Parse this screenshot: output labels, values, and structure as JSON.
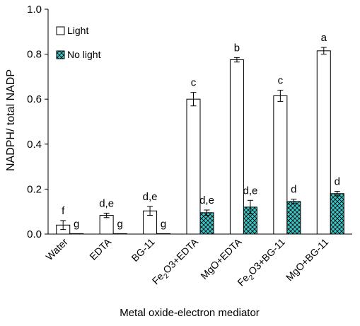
{
  "chart_data": {
    "type": "bar",
    "xlabel": "Metal oxide-electron mediator",
    "ylabel": "NADPH/ total NADP",
    "ylim": [
      0,
      1.0
    ],
    "yticks": [
      "0.0",
      "0.2",
      "0.4",
      "0.6",
      "0.8",
      "1.0"
    ],
    "grid": false,
    "legend_position": "top-left",
    "categories": [
      {
        "pre": "Water",
        "sub": "",
        "post": ""
      },
      {
        "pre": "EDTA",
        "sub": "",
        "post": ""
      },
      {
        "pre": "BG-11",
        "sub": "",
        "post": ""
      },
      {
        "pre": "Fe",
        "sub": "2",
        "post": "O3+EDTA"
      },
      {
        "pre": "MgO+EDTA",
        "sub": "",
        "post": ""
      },
      {
        "pre": "Fe",
        "sub": "2",
        "post": "O3+BG-11"
      },
      {
        "pre": "MgO+BG-11",
        "sub": "",
        "post": ""
      }
    ],
    "series": [
      {
        "name": "Light",
        "fill": "#ffffff",
        "pattern": "none",
        "values": [
          0.04,
          0.083,
          0.103,
          0.6,
          0.775,
          0.615,
          0.815
        ],
        "errors": [
          0.02,
          0.01,
          0.02,
          0.03,
          0.01,
          0.025,
          0.015
        ],
        "letters": [
          "f",
          "d,e",
          "d,e",
          "c",
          "b",
          "c",
          "a"
        ]
      },
      {
        "name": "No light",
        "fill": "#3cc8c8",
        "pattern": "crosshatch",
        "values": [
          0.002,
          0.002,
          0.002,
          0.095,
          0.12,
          0.145,
          0.18
        ],
        "errors": [
          0,
          0,
          0,
          0.012,
          0.03,
          0.01,
          0.01
        ],
        "letters": [
          "g",
          "g",
          "g",
          "d,e",
          "d,e",
          "d",
          "d"
        ]
      }
    ],
    "colors": {
      "axis": "#000000",
      "no_light_fill": "#3cc8c8",
      "hatch": "#000000"
    }
  }
}
